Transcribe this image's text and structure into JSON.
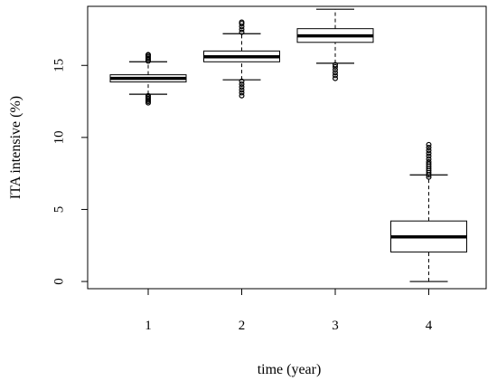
{
  "chart_data": {
    "type": "boxplot",
    "title": "",
    "xlabel": "time (year)",
    "ylabel": "ITA intensive (%)",
    "ylim": [
      -0.5,
      19.1
    ],
    "y_ticks": [
      0,
      5,
      10,
      15
    ],
    "y_tick_labels": [
      "0",
      "5",
      "10",
      "15"
    ],
    "categories": [
      "1",
      "2",
      "3",
      "4"
    ],
    "grid": false,
    "legend": "none",
    "box_color": "#000000",
    "outlier_color": "#000000",
    "boxes": [
      {
        "category": "1",
        "whisker_low": 13.0,
        "q1": 13.85,
        "median": 14.1,
        "q3": 14.35,
        "whisker_high": 15.25,
        "outliers": [
          12.4,
          12.5,
          12.6,
          12.7,
          12.8,
          12.9,
          15.3,
          15.4,
          15.5,
          15.6,
          15.7,
          15.75
        ]
      },
      {
        "category": "2",
        "whisker_low": 14.0,
        "q1": 15.25,
        "median": 15.6,
        "q3": 16.0,
        "whisker_high": 17.2,
        "outliers": [
          12.9,
          13.1,
          13.3,
          13.5,
          13.7,
          13.9,
          17.3,
          17.5,
          17.7,
          17.9,
          18.0
        ]
      },
      {
        "category": "3",
        "whisker_low": 15.15,
        "q1": 16.6,
        "median": 17.05,
        "q3": 17.55,
        "whisker_high": 18.9,
        "outliers": [
          14.1,
          14.3,
          14.5,
          14.7,
          14.9,
          15.05
        ]
      },
      {
        "category": "4",
        "whisker_low": 0.0,
        "q1": 2.05,
        "median": 3.1,
        "q3": 4.2,
        "whisker_high": 7.4,
        "outliers": [
          7.25,
          7.4,
          7.55,
          7.7,
          7.85,
          8.0,
          8.15,
          8.3,
          8.5,
          8.7,
          8.9,
          9.1,
          9.3,
          9.5
        ]
      }
    ]
  }
}
